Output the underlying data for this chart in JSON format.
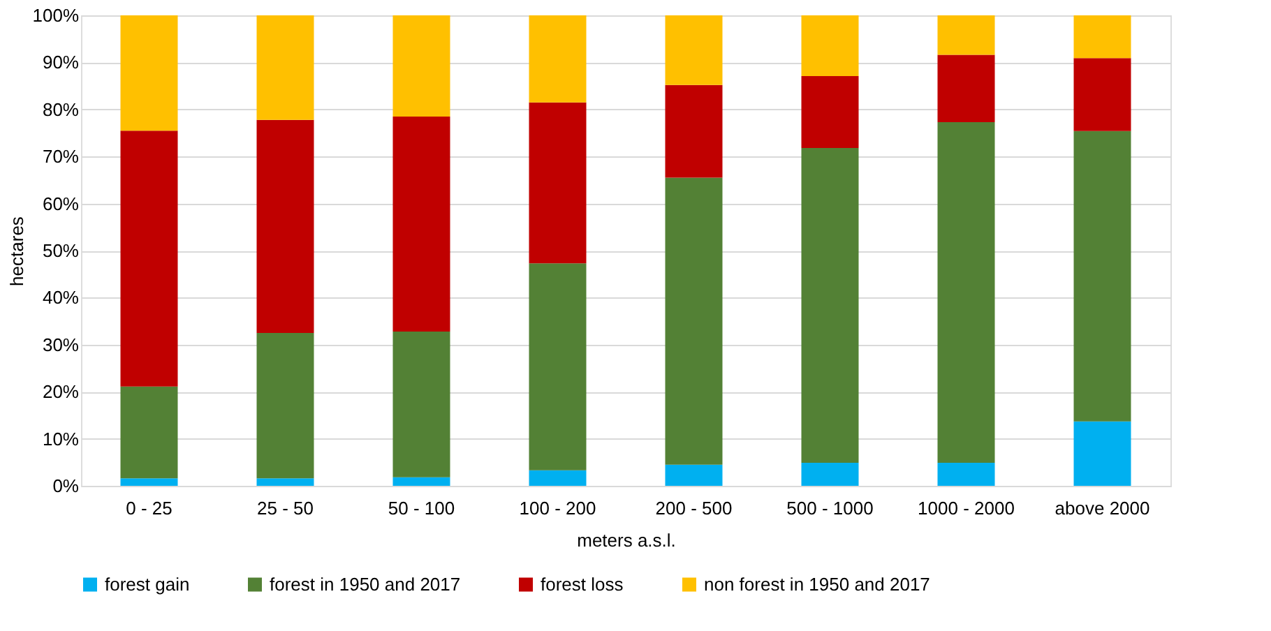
{
  "chart_data": {
    "type": "bar",
    "stacked": true,
    "xlabel": "meters a.s.l.",
    "ylabel": "hectares",
    "categories": [
      "0 - 25",
      "25 - 50",
      "50 - 100",
      "100 - 200",
      "200 - 500",
      "500 - 1000",
      "1000 - 2000",
      "above 2000"
    ],
    "series": [
      {
        "name": "forest gain",
        "color": "#00b0f0",
        "values": [
          1.6,
          1.6,
          1.8,
          3.3,
          4.5,
          4.9,
          4.9,
          13.7
        ]
      },
      {
        "name": "forest in 1950 and 2017",
        "color": "#538135",
        "values": [
          19.5,
          30.9,
          31.0,
          44.0,
          61.0,
          66.9,
          72.4,
          61.7
        ]
      },
      {
        "name": "forest loss",
        "color": "#c00000",
        "values": [
          54.4,
          45.3,
          45.7,
          34.2,
          19.7,
          15.3,
          14.3,
          15.5
        ]
      },
      {
        "name": "non forest in 1950 and 2017",
        "color": "#ffc000",
        "values": [
          24.5,
          22.2,
          21.5,
          18.5,
          14.8,
          12.9,
          8.4,
          9.1
        ]
      }
    ],
    "ylim": [
      0,
      100
    ],
    "yticks": [
      {
        "value": 0,
        "label": "0%"
      },
      {
        "value": 10,
        "label": "10%"
      },
      {
        "value": 20,
        "label": "20%"
      },
      {
        "value": 30,
        "label": "30%"
      },
      {
        "value": 40,
        "label": "40%"
      },
      {
        "value": 50,
        "label": "50%"
      },
      {
        "value": 60,
        "label": "60%"
      },
      {
        "value": 70,
        "label": "70%"
      },
      {
        "value": 80,
        "label": "80%"
      },
      {
        "value": 90,
        "label": "90%"
      },
      {
        "value": 100,
        "label": "100%"
      }
    ],
    "grid": "y",
    "legend": "bottom"
  }
}
